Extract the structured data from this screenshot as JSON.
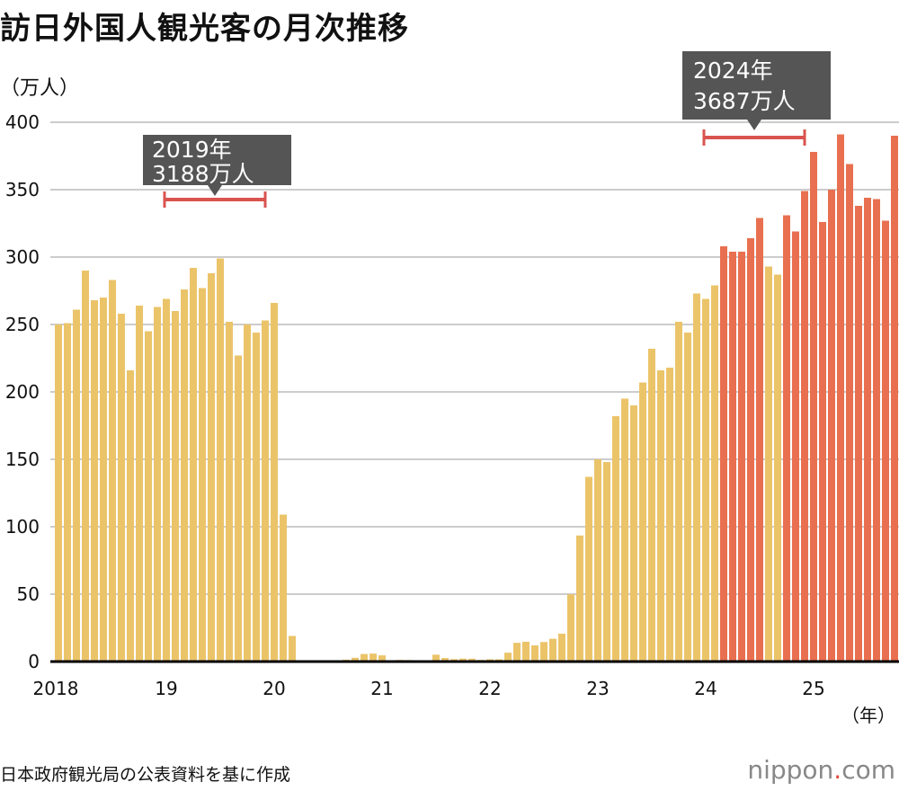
{
  "chart_data": {
    "type": "bar",
    "title": "訪日外国人観光客の月次推移",
    "ylabel": "（万人）",
    "xlabel": "（年）",
    "ylim": [
      0,
      400
    ],
    "yticks": [
      0,
      50,
      100,
      150,
      200,
      250,
      300,
      350,
      400
    ],
    "xtick_labels": [
      "2018",
      "19",
      "20",
      "21",
      "22",
      "23",
      "24",
      "25"
    ],
    "grid": "horizontal",
    "start_month": "2018-01",
    "end_month": "2025-10",
    "colors": {
      "normal": "#ebc46a",
      "highlight": "#e87050",
      "bracket": "#d9534f",
      "callout": "#555555"
    },
    "highlight_rule": "300万人以上 (2024年3月以降)",
    "values": [
      250,
      251,
      261,
      290,
      268,
      270,
      283,
      258,
      216,
      264,
      245,
      263,
      269,
      260,
      276,
      292,
      277,
      288,
      299,
      252,
      227,
      250,
      244,
      253,
      266,
      109,
      19,
      0.3,
      0.2,
      0.3,
      0.4,
      0.9,
      1.4,
      2.8,
      5.6,
      5.9,
      4.6,
      0.7,
      1.2,
      1.1,
      1.0,
      0.9,
      5.1,
      2.6,
      1.8,
      2.2,
      2.1,
      1.2,
      1.7,
      1.7,
      6.6,
      13.9,
      14.7,
      12.0,
      14.5,
      16.9,
      20.7,
      49.9,
      93.5,
      137,
      150,
      148,
      182,
      195,
      190,
      207,
      232,
      216,
      218,
      252,
      244,
      273,
      269,
      279,
      308,
      304,
      304,
      314,
      329,
      293,
      287,
      331,
      319,
      349,
      378,
      326,
      350,
      391,
      369,
      338,
      344,
      343,
      327,
      390
    ],
    "highlight": [
      0,
      0,
      0,
      0,
      0,
      0,
      0,
      0,
      0,
      0,
      0,
      0,
      0,
      0,
      0,
      0,
      0,
      0,
      0,
      0,
      0,
      0,
      0,
      0,
      0,
      0,
      0,
      0,
      0,
      0,
      0,
      0,
      0,
      0,
      0,
      0,
      0,
      0,
      0,
      0,
      0,
      0,
      0,
      0,
      0,
      0,
      0,
      0,
      0,
      0,
      0,
      0,
      0,
      0,
      0,
      0,
      0,
      0,
      0,
      0,
      0,
      0,
      0,
      0,
      0,
      0,
      0,
      0,
      0,
      0,
      0,
      0,
      0,
      0,
      1,
      1,
      1,
      1,
      1,
      0,
      0,
      1,
      1,
      1,
      1,
      1,
      1,
      1,
      1,
      1,
      1,
      1,
      1,
      1
    ],
    "annotations": [
      {
        "year": "2019年",
        "total": "3188万人",
        "from": "2019-01",
        "to": "2019-12"
      },
      {
        "year": "2024年",
        "total": "3687万人",
        "from": "2024-01",
        "to": "2024-12"
      }
    ]
  },
  "source": "日本政府観光局の公表資料を基に作成",
  "logo": {
    "name": "nippon",
    "dot": ".",
    "suffix": "com"
  }
}
